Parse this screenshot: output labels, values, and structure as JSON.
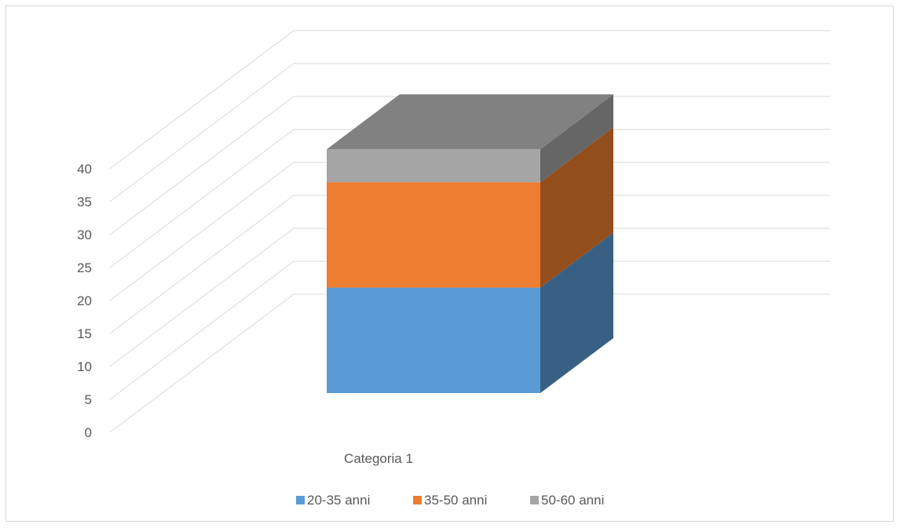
{
  "chart_data": {
    "type": "bar",
    "subtype": "stacked-3d",
    "categories": [
      "Categoria 1"
    ],
    "series": [
      {
        "name": "20-35 anni",
        "values": [
          16
        ],
        "color": "#5b9bd5"
      },
      {
        "name": "35-50 anni",
        "values": [
          16
        ],
        "color": "#ed7d31"
      },
      {
        "name": "50-60 anni",
        "values": [
          5
        ],
        "color": "#a5a5a5"
      }
    ],
    "y_ticks": [
      "0",
      "5",
      "10",
      "15",
      "20",
      "25",
      "30",
      "35",
      "40"
    ],
    "ylim": [
      0,
      40
    ],
    "grid": true,
    "legend": "bottom"
  }
}
